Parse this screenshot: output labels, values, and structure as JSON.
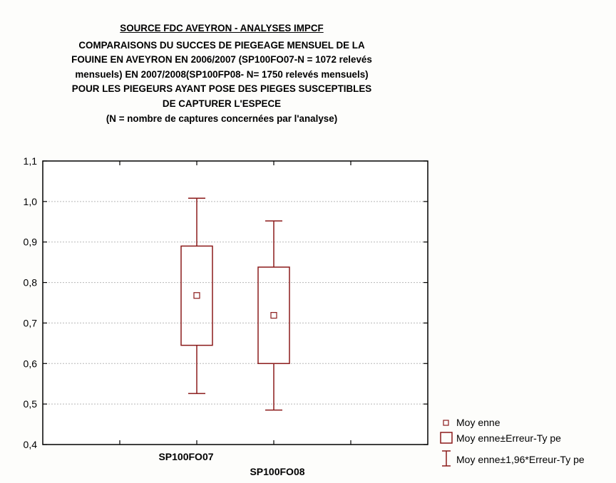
{
  "chart_data": {
    "type": "box",
    "title_lines": [
      "SOURCE FDC AVEYRON - ANALYSES IMPCF",
      "COMPARAISONS DU SUCCES DE PIEGEAGE MENSUEL DE LA",
      "FOUINE EN AVEYRON EN 2006/2007 (SP100FO07-N = 1072 relevés",
      "mensuels) EN 2007/2008(SP100FP08- N= 1750 relevés mensuels)",
      "POUR LES PIEGEURS AYANT POSE DES PIEGES SUSCEPTIBLES",
      "DE CAPTURER L'ESPECE",
      "(N = nombre de captures concernées par l'analyse)"
    ],
    "categories": [
      "SP100FO07",
      "SP100FO08"
    ],
    "mean": [
      0.768,
      0.719
    ],
    "mean_minus_se": [
      0.645,
      0.6
    ],
    "mean_plus_se": [
      0.89,
      0.838
    ],
    "mean_minus_1_96_se": [
      0.526,
      0.485
    ],
    "mean_plus_1_96_se": [
      1.008,
      0.952
    ],
    "ylim": [
      0.4,
      1.1
    ],
    "yticks": [
      "0,4",
      "0,5",
      "0,6",
      "0,7",
      "0,8",
      "0,9",
      "1,0",
      "1,1"
    ],
    "ytick_values": [
      0.4,
      0.5,
      0.6,
      0.7,
      0.8,
      0.9,
      1.0,
      1.1
    ],
    "grid": true,
    "legend_position": "bottom-right",
    "legend": [
      "Moy enne",
      "Moy enne±Erreur-Ty pe",
      "Moy enne±1,96*Erreur-Ty pe"
    ],
    "colors": {
      "series": "#8b1a1a",
      "grid": "#b8b8b8",
      "axis": "#000000"
    }
  }
}
